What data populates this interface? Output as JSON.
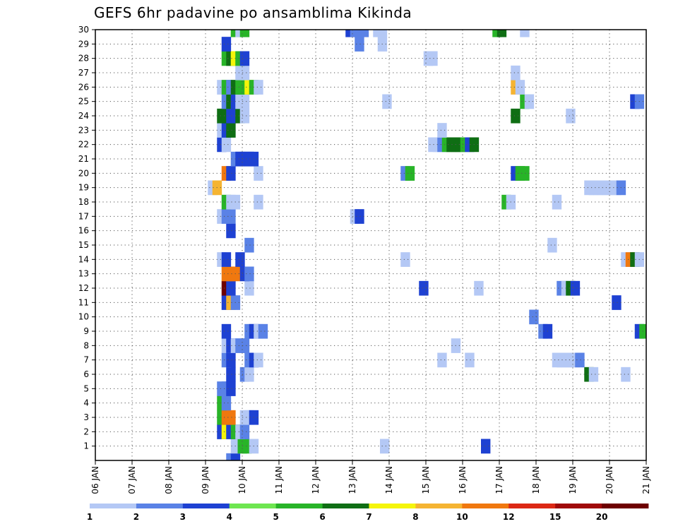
{
  "chart_data": {
    "type": "heatmap",
    "title": "GEFS 6hr padavine po ansamblima Kikinda",
    "x_ticks": [
      "06 JAN",
      "07 JAN",
      "08 JAN",
      "09 JAN",
      "10 JAN",
      "11 JAN",
      "12 JAN",
      "13 JAN",
      "14 JAN",
      "15 JAN",
      "16 JAN",
      "17 JAN",
      "18 JAN",
      "19 JAN",
      "20 JAN",
      "21 JAN"
    ],
    "y_ticks": [
      "1",
      "2",
      "3",
      "4",
      "5",
      "6",
      "7",
      "8",
      "9",
      "10",
      "11",
      "12",
      "13",
      "14",
      "15",
      "16",
      "17",
      "18",
      "19",
      "20",
      "21",
      "22",
      "23",
      "24",
      "25",
      "26",
      "27",
      "28",
      "29",
      "30"
    ],
    "xlim": [
      0,
      60
    ],
    "ylim": [
      0,
      30
    ],
    "grid": true,
    "colorbar": {
      "labels": [
        "1",
        "2",
        "3",
        "4",
        "5",
        "6",
        "7",
        "8",
        "10",
        "12",
        "15",
        "20"
      ],
      "colors": [
        "#b4c8f5",
        "#5a82e6",
        "#1e41d2",
        "#6ee650",
        "#28b428",
        "#0f6e14",
        "#f5f50a",
        "#f5b432",
        "#f0780f",
        "#dc2814",
        "#a00a0a",
        "#6e0000"
      ]
    },
    "cells": [
      [
        14.75,
        0,
        2
      ],
      [
        15.25,
        0,
        3
      ],
      [
        15.25,
        1,
        1
      ],
      [
        16,
        1,
        5
      ],
      [
        16.5,
        1,
        5
      ],
      [
        17.25,
        1,
        1
      ],
      [
        42.5,
        1,
        3
      ],
      [
        31.5,
        1,
        1
      ],
      [
        13.75,
        2,
        3
      ],
      [
        14.25,
        2,
        7
      ],
      [
        14.75,
        2,
        3
      ],
      [
        15.25,
        2,
        5
      ],
      [
        15.75,
        2,
        1
      ],
      [
        16.25,
        2,
        2
      ],
      [
        13.75,
        3,
        5
      ],
      [
        14.25,
        3,
        10
      ],
      [
        14.75,
        3,
        10
      ],
      [
        16.25,
        3,
        1
      ],
      [
        16.75,
        3,
        1
      ],
      [
        17.25,
        3,
        3
      ],
      [
        13.75,
        4,
        5
      ],
      [
        14.25,
        4,
        2
      ],
      [
        13.75,
        5,
        2
      ],
      [
        14.25,
        5,
        2
      ],
      [
        14.75,
        5,
        3
      ],
      [
        14.75,
        6,
        3
      ],
      [
        16.25,
        6,
        2
      ],
      [
        16.75,
        6,
        1
      ],
      [
        53.75,
        6,
        6
      ],
      [
        54.25,
        6,
        1
      ],
      [
        57.75,
        6,
        1
      ],
      [
        14.25,
        7,
        2
      ],
      [
        14.75,
        7,
        3
      ],
      [
        16.75,
        7,
        2
      ],
      [
        17.25,
        7,
        3
      ],
      [
        17.75,
        7,
        1
      ],
      [
        37.75,
        7,
        1
      ],
      [
        40.75,
        7,
        1
      ],
      [
        50.25,
        7,
        1
      ],
      [
        50.75,
        7,
        1
      ],
      [
        51.25,
        7,
        1
      ],
      [
        51.75,
        7,
        1
      ],
      [
        52.25,
        7,
        1
      ],
      [
        52.75,
        7,
        2
      ],
      [
        14.25,
        8,
        1
      ],
      [
        14.75,
        8,
        3
      ],
      [
        15.25,
        8,
        1
      ],
      [
        15.75,
        8,
        2
      ],
      [
        16.25,
        8,
        2
      ],
      [
        39.25,
        8,
        1
      ],
      [
        14.25,
        9,
        3
      ],
      [
        16.75,
        9,
        2
      ],
      [
        17.25,
        9,
        3
      ],
      [
        17.75,
        9,
        1
      ],
      [
        18.25,
        9,
        2
      ],
      [
        48.75,
        9,
        2
      ],
      [
        49.25,
        9,
        3
      ],
      [
        59.25,
        9,
        3
      ],
      [
        59.75,
        9,
        5
      ],
      [
        47.75,
        10,
        2
      ],
      [
        14.25,
        11,
        3
      ],
      [
        14.75,
        11,
        8
      ],
      [
        15.25,
        11,
        2
      ],
      [
        56.75,
        11,
        3
      ],
      [
        14.25,
        12,
        20
      ],
      [
        14.75,
        12,
        3
      ],
      [
        16.75,
        12,
        1
      ],
      [
        35.75,
        12,
        3
      ],
      [
        41.75,
        12,
        1
      ],
      [
        50.75,
        12,
        2
      ],
      [
        51.25,
        12,
        1
      ],
      [
        51.75,
        12,
        6
      ],
      [
        52.25,
        12,
        3
      ],
      [
        14.25,
        13,
        10
      ],
      [
        14.75,
        13,
        10
      ],
      [
        15.25,
        13,
        10
      ],
      [
        16.25,
        13,
        3
      ],
      [
        16.75,
        13,
        2
      ],
      [
        13.75,
        14,
        1
      ],
      [
        14.25,
        14,
        3
      ],
      [
        15.75,
        14,
        3
      ],
      [
        33.75,
        14,
        1
      ],
      [
        57.75,
        14,
        1
      ],
      [
        58.25,
        14,
        10
      ],
      [
        58.75,
        14,
        6
      ],
      [
        59.25,
        14,
        1
      ],
      [
        16.75,
        15,
        2
      ],
      [
        49.75,
        15,
        1
      ],
      [
        14.75,
        16,
        3
      ],
      [
        13.75,
        17,
        1
      ],
      [
        14.25,
        17,
        2
      ],
      [
        14.75,
        17,
        2
      ],
      [
        28.25,
        17,
        1
      ],
      [
        28.75,
        17,
        3
      ],
      [
        14.25,
        18,
        5
      ],
      [
        14.75,
        18,
        1
      ],
      [
        15.25,
        18,
        1
      ],
      [
        17.75,
        18,
        1
      ],
      [
        44.75,
        18,
        5
      ],
      [
        45.25,
        18,
        1
      ],
      [
        50.25,
        18,
        1
      ],
      [
        12.75,
        19,
        1
      ],
      [
        13.25,
        19,
        8
      ],
      [
        53.75,
        19,
        1
      ],
      [
        54.25,
        19,
        1
      ],
      [
        54.75,
        19,
        1
      ],
      [
        55.25,
        19,
        1
      ],
      [
        55.75,
        19,
        1
      ],
      [
        56.25,
        19,
        1
      ],
      [
        56.75,
        19,
        1
      ],
      [
        57.25,
        19,
        2
      ],
      [
        14.25,
        20,
        10
      ],
      [
        14.75,
        20,
        3
      ],
      [
        17.75,
        20,
        1
      ],
      [
        33.75,
        20,
        2
      ],
      [
        34.25,
        20,
        5
      ],
      [
        45.75,
        20,
        3
      ],
      [
        46.25,
        20,
        5
      ],
      [
        46.75,
        20,
        5
      ],
      [
        15.25,
        21,
        2
      ],
      [
        15.75,
        21,
        3
      ],
      [
        16.25,
        21,
        3
      ],
      [
        16.75,
        21,
        3
      ],
      [
        17.25,
        21,
        3
      ],
      [
        13.75,
        22,
        3
      ],
      [
        14.25,
        22,
        1
      ],
      [
        36.75,
        22,
        1
      ],
      [
        37.25,
        22,
        1
      ],
      [
        37.75,
        22,
        2
      ],
      [
        38.25,
        22,
        5
      ],
      [
        38.75,
        22,
        6
      ],
      [
        39.25,
        22,
        6
      ],
      [
        39.75,
        22,
        6
      ],
      [
        40.25,
        22,
        5
      ],
      [
        40.75,
        22,
        3
      ],
      [
        41.25,
        22,
        6
      ],
      [
        13.75,
        23,
        1
      ],
      [
        14.25,
        23,
        3
      ],
      [
        14.75,
        23,
        6
      ],
      [
        37.75,
        23,
        1
      ],
      [
        13.75,
        24,
        6
      ],
      [
        14.25,
        24,
        6
      ],
      [
        14.75,
        24,
        3
      ],
      [
        15.25,
        24,
        3
      ],
      [
        15.75,
        24,
        6
      ],
      [
        16.25,
        24,
        1
      ],
      [
        45.75,
        24,
        6
      ],
      [
        51.75,
        24,
        1
      ],
      [
        14.25,
        25,
        2
      ],
      [
        14.75,
        25,
        6
      ],
      [
        15.25,
        25,
        3
      ],
      [
        15.75,
        25,
        1
      ],
      [
        16.25,
        25,
        1
      ],
      [
        31.75,
        25,
        1
      ],
      [
        46.75,
        25,
        5
      ],
      [
        47.25,
        25,
        1
      ],
      [
        58.75,
        25,
        3
      ],
      [
        59.25,
        25,
        2
      ],
      [
        13.75,
        26,
        1
      ],
      [
        14.25,
        26,
        5
      ],
      [
        14.75,
        26,
        2
      ],
      [
        15.25,
        26,
        6
      ],
      [
        15.75,
        26,
        5
      ],
      [
        16.25,
        26,
        5
      ],
      [
        16.75,
        26,
        7
      ],
      [
        17.25,
        26,
        5
      ],
      [
        17.75,
        26,
        1
      ],
      [
        45.75,
        26,
        8
      ],
      [
        46.25,
        26,
        1
      ],
      [
        15.75,
        27,
        1
      ],
      [
        16.25,
        27,
        1
      ],
      [
        45.75,
        27,
        1
      ],
      [
        14.25,
        28,
        5
      ],
      [
        14.75,
        28,
        6
      ],
      [
        15.25,
        28,
        7
      ],
      [
        15.75,
        28,
        5
      ],
      [
        16.25,
        28,
        3
      ],
      [
        36.25,
        28,
        1
      ],
      [
        36.75,
        28,
        1
      ],
      [
        14.25,
        29,
        3
      ],
      [
        28.75,
        29,
        2
      ],
      [
        31.25,
        29,
        1
      ],
      [
        15.25,
        30,
        5
      ],
      [
        15.75,
        30,
        1
      ],
      [
        16.25,
        30,
        5
      ],
      [
        27.75,
        30,
        3
      ],
      [
        28.25,
        30,
        2
      ],
      [
        28.75,
        30,
        2
      ],
      [
        29.25,
        30,
        2
      ],
      [
        30.75,
        30,
        1
      ],
      [
        31.25,
        30,
        1
      ],
      [
        43.75,
        30,
        5
      ],
      [
        44.25,
        30,
        6
      ],
      [
        46.75,
        30,
        1
      ]
    ]
  }
}
